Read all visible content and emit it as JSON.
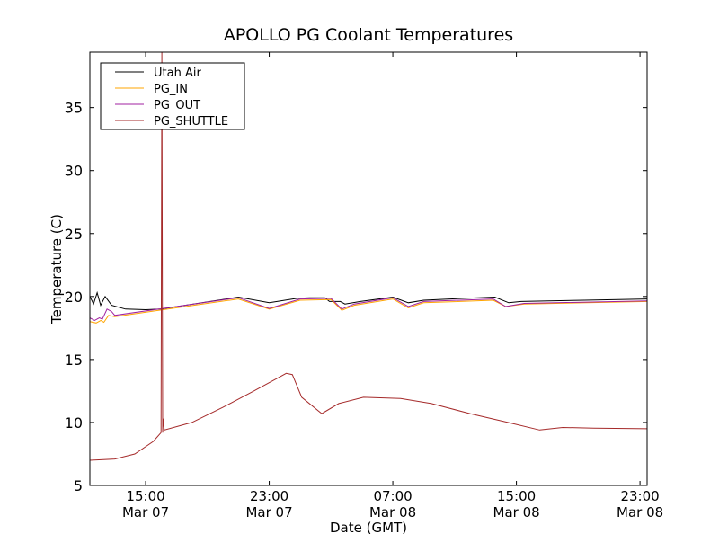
{
  "chart_data": {
    "type": "line",
    "title": "APOLLO PG Coolant Temperatures",
    "xlabel": "Date (GMT)",
    "ylabel": "Temperature (C)",
    "x_units": "hours since Mar 07 00:00 GMT",
    "xlim": [
      11.39,
      47.46
    ],
    "ylim": [
      5,
      39.4
    ],
    "yticks": [
      5,
      10,
      15,
      20,
      25,
      30,
      35
    ],
    "xticks": [
      {
        "value": 15,
        "line1": "15:00",
        "line2": "Mar 07"
      },
      {
        "value": 23,
        "line1": "23:00",
        "line2": "Mar 07"
      },
      {
        "value": 31,
        "line1": "07:00",
        "line2": "Mar 08"
      },
      {
        "value": 39,
        "line1": "15:00",
        "line2": "Mar 08"
      },
      {
        "value": 47,
        "line1": "23:00",
        "line2": "Mar 08"
      }
    ],
    "grid": false,
    "legend_position": "top-left",
    "series": [
      {
        "name": "Utah Air",
        "color": "#000000",
        "points": [
          [
            11.39,
            20.0
          ],
          [
            11.63,
            19.4
          ],
          [
            11.86,
            20.3
          ],
          [
            12.09,
            19.3
          ],
          [
            12.38,
            20.0
          ],
          [
            12.8,
            19.3
          ],
          [
            13.7,
            19.0
          ],
          [
            15,
            18.95
          ],
          [
            16,
            19.0
          ],
          [
            21,
            19.95
          ],
          [
            23,
            19.5
          ],
          [
            24.8,
            19.85
          ],
          [
            25.6,
            19.9
          ],
          [
            26.6,
            19.9
          ],
          [
            26.9,
            19.6
          ],
          [
            27.6,
            19.6
          ],
          [
            27.9,
            19.4
          ],
          [
            28.9,
            19.6
          ],
          [
            31,
            19.95
          ],
          [
            32,
            19.5
          ],
          [
            33,
            19.7
          ],
          [
            34.7,
            19.8
          ],
          [
            37.6,
            19.95
          ],
          [
            38.5,
            19.5
          ],
          [
            39.3,
            19.6
          ],
          [
            43.4,
            19.7
          ],
          [
            47.46,
            19.8
          ]
        ]
      },
      {
        "name": "PG_IN",
        "color": "#ffa500",
        "points": [
          [
            11.39,
            18.0
          ],
          [
            11.8,
            17.9
          ],
          [
            12.1,
            18.1
          ],
          [
            12.3,
            17.95
          ],
          [
            12.6,
            18.5
          ],
          [
            13,
            18.4
          ],
          [
            21,
            19.8
          ],
          [
            23,
            19.0
          ],
          [
            25,
            19.7
          ],
          [
            27,
            19.75
          ],
          [
            27.7,
            18.9
          ],
          [
            28.5,
            19.3
          ],
          [
            31,
            19.8
          ],
          [
            32,
            19.1
          ],
          [
            33,
            19.5
          ],
          [
            37.5,
            19.7
          ],
          [
            38.3,
            19.2
          ],
          [
            39.5,
            19.4
          ],
          [
            47.46,
            19.6
          ]
        ]
      },
      {
        "name": "PG_OUT",
        "color": "#a020a0",
        "points": [
          [
            11.39,
            18.3
          ],
          [
            11.7,
            18.1
          ],
          [
            12.0,
            18.3
          ],
          [
            12.2,
            18.2
          ],
          [
            12.5,
            19.0
          ],
          [
            12.8,
            18.8
          ],
          [
            13,
            18.5
          ],
          [
            21,
            19.9
          ],
          [
            23,
            19.05
          ],
          [
            25,
            19.8
          ],
          [
            27,
            19.85
          ],
          [
            27.7,
            19.0
          ],
          [
            28.5,
            19.4
          ],
          [
            31,
            19.9
          ],
          [
            32,
            19.2
          ],
          [
            33,
            19.6
          ],
          [
            37.5,
            19.8
          ],
          [
            38.3,
            19.2
          ],
          [
            39.5,
            19.45
          ],
          [
            47.46,
            19.65
          ]
        ]
      },
      {
        "name": "PG_SHUTTLE",
        "color": "#a52a2a",
        "points": [
          [
            11.39,
            7.0
          ],
          [
            13,
            7.1
          ],
          [
            14.3,
            7.5
          ],
          [
            15.5,
            8.5
          ],
          [
            16.0,
            9.2
          ],
          [
            16.05,
            39.4
          ],
          [
            16.1,
            9.2
          ],
          [
            16.15,
            10.3
          ],
          [
            16.2,
            9.4
          ],
          [
            18,
            10.0
          ],
          [
            20,
            11.2
          ],
          [
            22,
            12.5
          ],
          [
            23.5,
            13.5
          ],
          [
            24.1,
            13.9
          ],
          [
            24.5,
            13.8
          ],
          [
            25.1,
            12.0
          ],
          [
            26.4,
            10.7
          ],
          [
            27.5,
            11.5
          ],
          [
            29.1,
            12.0
          ],
          [
            31.5,
            11.9
          ],
          [
            33.5,
            11.5
          ],
          [
            36,
            10.7
          ],
          [
            38.45,
            10.0
          ],
          [
            40.5,
            9.4
          ],
          [
            42,
            9.6
          ],
          [
            44,
            9.55
          ],
          [
            47.46,
            9.5
          ]
        ]
      }
    ]
  }
}
